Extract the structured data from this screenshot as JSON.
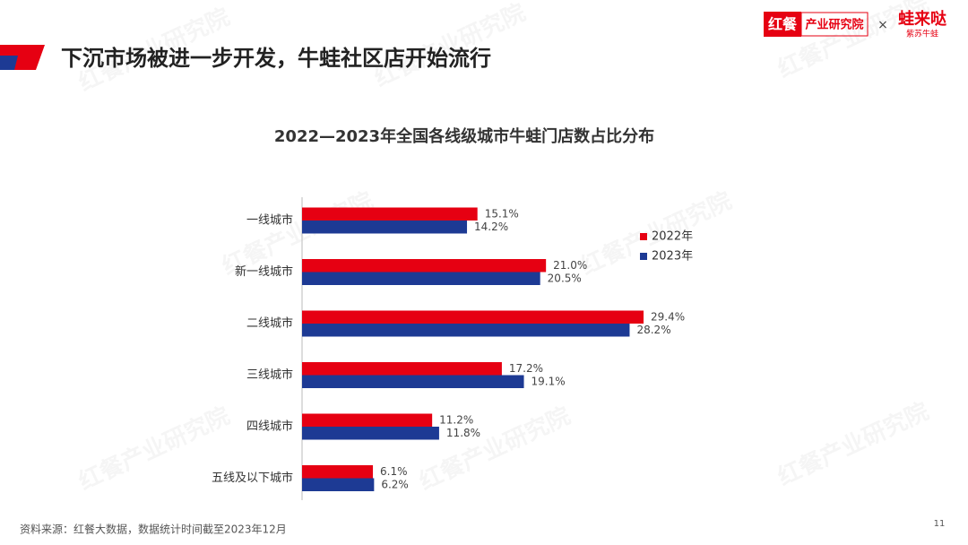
{
  "header": {
    "title": "下沉市场被进一步开发，牛蛙社区店开始流行",
    "logo_left": "红餐",
    "logo_left_sub": "产业研究院",
    "separator": "×",
    "logo_right": "蛙来哒",
    "logo_right_sub": "紫苏牛蛙"
  },
  "watermark": "红餐产业研究院",
  "chart_data": {
    "type": "bar",
    "orientation": "horizontal",
    "title": "2022—2023年全国各线级城市牛蛙门店数占比分布",
    "categories": [
      "一线城市",
      "新一线城市",
      "二线城市",
      "三线城市",
      "四线城市",
      "五线及以下城市"
    ],
    "series": [
      {
        "name": "2022年",
        "color": "#e60012",
        "values": [
          15.1,
          21.0,
          29.4,
          17.2,
          11.2,
          6.1
        ],
        "value_labels": [
          "15.1%",
          "21.0%",
          "29.4%",
          "17.2%",
          "11.2%",
          "6.1%"
        ]
      },
      {
        "name": "2023年",
        "color": "#1d3a94",
        "values": [
          14.2,
          20.5,
          28.2,
          19.1,
          11.8,
          6.2
        ],
        "value_labels": [
          "14.2%",
          "20.5%",
          "28.2%",
          "19.1%",
          "11.8%",
          "6.2%"
        ]
      }
    ],
    "legend": "upper right"
  },
  "footer": {
    "source": "资料来源：红餐大数据，数据统计时间截至2023年12月",
    "page": "11"
  }
}
